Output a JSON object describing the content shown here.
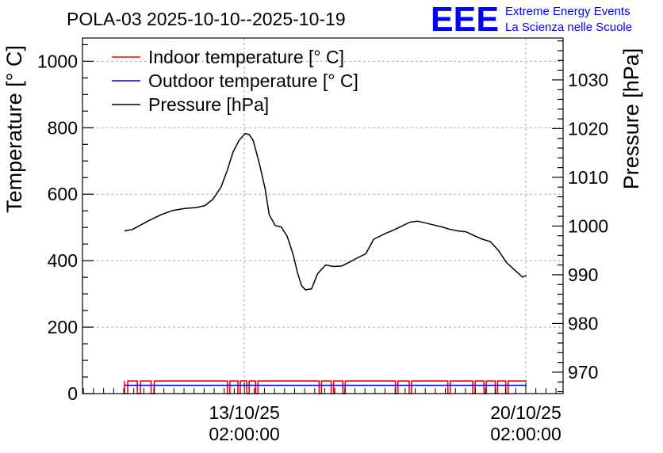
{
  "chart_data": {
    "type": "line",
    "title": "POLA-03 2025-10-10--2025-10-19",
    "ylabel": "Temperature [° C]",
    "y2label": "Pressure [hPa]",
    "ylim": [
      0,
      1070
    ],
    "y2lim": [
      965.6,
      1038.6
    ],
    "yticks": [
      0,
      200,
      400,
      600,
      800,
      1000
    ],
    "y2ticks": [
      970,
      980,
      990,
      1000,
      1010,
      1020,
      1030
    ],
    "xrange_days": [
      0,
      10.0
    ],
    "xticks": [
      {
        "day": 2.98,
        "date": "13/10/25",
        "time": "02:00:00"
      },
      {
        "day": 9.98,
        "date": "20/10/25",
        "time": "02:00:00"
      }
    ],
    "grid": true,
    "legend_position": "top-left",
    "series": [
      {
        "name": "Indoor temperature [° C]",
        "color": "#ff0000",
        "axis": "left",
        "baseline": 38,
        "dropouts": [
          [
            0.0,
            0.08
          ],
          [
            0.32,
            0.4
          ],
          [
            0.66,
            0.74
          ],
          [
            2.56,
            2.62
          ],
          [
            2.82,
            2.88
          ],
          [
            3.04,
            3.1
          ],
          [
            3.26,
            3.32
          ],
          [
            4.84,
            4.9
          ],
          [
            5.14,
            5.2
          ],
          [
            5.43,
            5.49
          ],
          [
            6.74,
            6.8
          ],
          [
            7.08,
            7.14
          ],
          [
            8.04,
            8.1
          ],
          [
            8.66,
            8.72
          ],
          [
            8.94,
            9.0
          ],
          [
            9.22,
            9.28
          ],
          [
            9.48,
            9.54
          ]
        ],
        "x": [
          0.0,
          10.0
        ]
      },
      {
        "name": "Outdoor temperature [° C]",
        "color": "#0000ff",
        "axis": "left",
        "values": [
          25,
          25
        ],
        "x": [
          0.0,
          10.0
        ]
      },
      {
        "name": "Pressure [hPa]",
        "color": "#000000",
        "axis": "right",
        "x": [
          0.0,
          0.2,
          0.4,
          0.6,
          0.9,
          1.2,
          1.5,
          1.8,
          2.0,
          2.2,
          2.4,
          2.55,
          2.7,
          2.85,
          3.0,
          3.1,
          3.2,
          3.35,
          3.5,
          3.6,
          3.75,
          3.9,
          4.05,
          4.2,
          4.3,
          4.4,
          4.5,
          4.65,
          4.8,
          5.0,
          5.2,
          5.4,
          5.6,
          5.8,
          6.0,
          6.2,
          6.5,
          6.7,
          6.9,
          7.1,
          7.3,
          7.5,
          7.7,
          7.9,
          8.1,
          8.3,
          8.5,
          8.7,
          8.9,
          9.1,
          9.3,
          9.5,
          9.7,
          9.9,
          10.0
        ],
        "values": [
          999.0,
          999.3,
          1000.2,
          1001.1,
          1002.3,
          1003.2,
          1003.6,
          1003.8,
          1004.2,
          1005.5,
          1008.0,
          1011.3,
          1015.2,
          1017.6,
          1019.0,
          1018.8,
          1017.6,
          1013.0,
          1007.6,
          1002.3,
          1000.1,
          999.8,
          997.8,
          994.0,
          990.5,
          987.8,
          986.9,
          987.1,
          990.2,
          992.0,
          991.7,
          991.8,
          992.6,
          993.5,
          994.3,
          997.3,
          998.5,
          999.2,
          1000.0,
          1000.8,
          1001.0,
          1000.6,
          1000.2,
          999.8,
          999.3,
          999.0,
          998.8,
          998.0,
          997.3,
          996.8,
          995.0,
          992.5,
          991.0,
          989.5,
          989.9
        ]
      }
    ]
  },
  "logo": {
    "letters": "EEE",
    "line1": "Extreme Energy Events",
    "line2": "La Scienza nelle Scuole"
  },
  "colors": {
    "logo_blue": "#0000ff",
    "grid": "#aaaaaa"
  }
}
